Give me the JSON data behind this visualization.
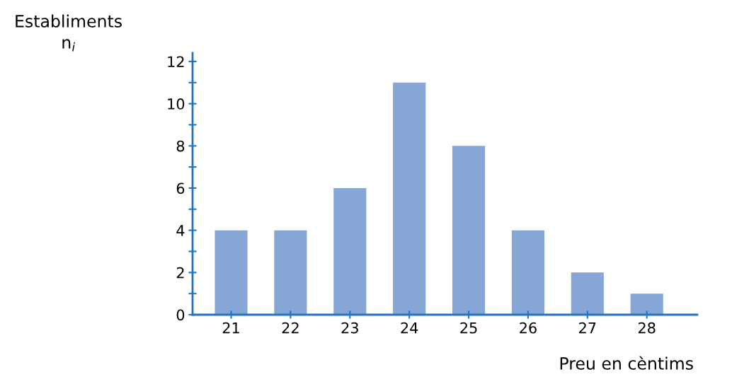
{
  "chart_data": {
    "type": "bar",
    "ylabel": "Establiments\nn$_{i}$",
    "xlabel": "Preu en cèntims",
    "categories": [
      "21",
      "22",
      "23",
      "24",
      "25",
      "26",
      "27",
      "28"
    ],
    "values": [
      4,
      4,
      6,
      11,
      8,
      4,
      2,
      1
    ],
    "color": "#86a6d6",
    "ylim": [
      0,
      12.4
    ],
    "yticks": [
      0,
      {
        "value": 1,
        "label": null
      },
      2,
      {
        "value": 3,
        "label": null
      },
      4,
      {
        "value": 5,
        "label": null
      },
      6,
      {
        "value": 7,
        "label": null
      },
      8,
      {
        "value": 9,
        "label": null
      },
      10,
      {
        "value": 11,
        "label": null
      },
      12
    ],
    "grid": false,
    "legend": false
  }
}
